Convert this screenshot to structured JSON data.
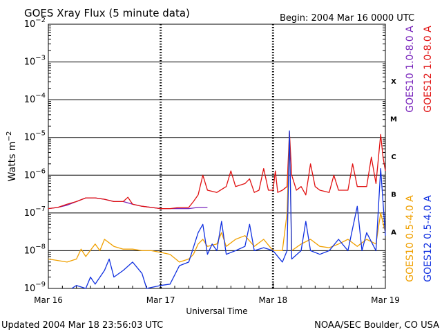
{
  "title": "GOES Xray Flux (5 minute data)",
  "begin_label": "Begin:  2004 Mar 16 0000 UTC",
  "footer_left": "Updated 2004 Mar 18 23:56:03 UTC",
  "footer_right": "NOAA/SEC Boulder, CO USA",
  "colors": {
    "goes10_long": "#7722bb",
    "goes12_long": "#e01010",
    "goes10_short": "#f0a000",
    "goes12_short": "#1030e0",
    "axis": "#000000"
  },
  "chart_data": {
    "type": "line",
    "title": "GOES Xray Flux (5 minute data)",
    "xlabel": "Universal Time",
    "ylabel": "Watts m⁻²",
    "yscale": "log",
    "ylim": [
      1e-09,
      0.01
    ],
    "xlim": [
      0,
      72
    ],
    "x_unit": "hours since 2004 Mar 16 0000 UTC",
    "x_ticks": [
      {
        "x": 0,
        "label": "Mar 16"
      },
      {
        "x": 24,
        "label": "Mar 17"
      },
      {
        "x": 48,
        "label": "Mar 18"
      },
      {
        "x": 72,
        "label": "Mar 19"
      }
    ],
    "y_ticks": [
      {
        "exp": -9,
        "label": "10",
        "sup": "−9"
      },
      {
        "exp": -8,
        "label": "10",
        "sup": "−8"
      },
      {
        "exp": -7,
        "label": "10",
        "sup": "−7"
      },
      {
        "exp": -6,
        "label": "10",
        "sup": "−6"
      },
      {
        "exp": -5,
        "label": "10",
        "sup": "−5"
      },
      {
        "exp": -4,
        "label": "10",
        "sup": "−4"
      },
      {
        "exp": -3,
        "label": "10",
        "sup": "−3"
      },
      {
        "exp": -2,
        "label": "10",
        "sup": "−2"
      }
    ],
    "flare_classes": [
      {
        "label": "A",
        "exp": -7.5
      },
      {
        "label": "B",
        "exp": -6.5
      },
      {
        "label": "C",
        "exp": -5.5
      },
      {
        "label": "M",
        "exp": -4.5
      },
      {
        "label": "X",
        "exp": -3.5
      }
    ],
    "grid": true,
    "legend_position": "right (vertical labels)",
    "series": [
      {
        "name": "GOES10 1.0-8.0 A",
        "color": "#7722bb",
        "points": [
          [
            0,
            1.3e-07
          ],
          [
            2,
            1.4e-07
          ],
          [
            4,
            1.6e-07
          ],
          [
            6,
            2e-07
          ],
          [
            8,
            2.5e-07
          ],
          [
            10,
            2.5e-07
          ],
          [
            12,
            2.3e-07
          ],
          [
            14,
            2e-07
          ],
          [
            16,
            2e-07
          ],
          [
            18,
            1.7e-07
          ],
          [
            20,
            1.5e-07
          ],
          [
            22,
            1.4e-07
          ],
          [
            24,
            1.3e-07
          ],
          [
            26,
            1.3e-07
          ],
          [
            28,
            1.3e-07
          ],
          [
            30,
            1.3e-07
          ],
          [
            32,
            1.4e-07
          ],
          [
            34,
            1.4e-07
          ]
        ]
      },
      {
        "name": "GOES12 1.0-8.0 A",
        "color": "#e01010",
        "points": [
          [
            0,
            1.3e-07
          ],
          [
            2,
            1.4e-07
          ],
          [
            4,
            1.7e-07
          ],
          [
            6,
            2e-07
          ],
          [
            8,
            2.5e-07
          ],
          [
            10,
            2.5e-07
          ],
          [
            12,
            2.3e-07
          ],
          [
            14,
            2e-07
          ],
          [
            16,
            2e-07
          ],
          [
            17,
            2.6e-07
          ],
          [
            18,
            1.7e-07
          ],
          [
            20,
            1.5e-07
          ],
          [
            22,
            1.4e-07
          ],
          [
            24,
            1.3e-07
          ],
          [
            26,
            1.3e-07
          ],
          [
            28,
            1.4e-07
          ],
          [
            30,
            1.4e-07
          ],
          [
            31,
            2e-07
          ],
          [
            32,
            3e-07
          ],
          [
            33,
            1e-06
          ],
          [
            34,
            4e-07
          ],
          [
            36,
            3.5e-07
          ],
          [
            38,
            5e-07
          ],
          [
            39,
            1.3e-06
          ],
          [
            40,
            5e-07
          ],
          [
            42,
            6e-07
          ],
          [
            43,
            8e-07
          ],
          [
            44,
            3.5e-07
          ],
          [
            45,
            4e-07
          ],
          [
            46,
            1.5e-06
          ],
          [
            47,
            4e-07
          ],
          [
            48,
            4e-07
          ],
          [
            48.5,
            1.3e-06
          ],
          [
            49,
            3.5e-07
          ],
          [
            50,
            4e-07
          ],
          [
            51,
            5e-07
          ],
          [
            51.5,
            1.4e-05
          ],
          [
            52,
            1e-06
          ],
          [
            53,
            4e-07
          ],
          [
            54,
            5e-07
          ],
          [
            55,
            3e-07
          ],
          [
            56,
            2e-06
          ],
          [
            57,
            5e-07
          ],
          [
            58,
            4e-07
          ],
          [
            60,
            3.5e-07
          ],
          [
            61,
            1e-06
          ],
          [
            62,
            4e-07
          ],
          [
            64,
            4e-07
          ],
          [
            65,
            2e-06
          ],
          [
            66,
            5e-07
          ],
          [
            68,
            5e-07
          ],
          [
            69,
            3e-06
          ],
          [
            70,
            6e-07
          ],
          [
            71,
            1.2e-05
          ],
          [
            71.5,
            3e-06
          ],
          [
            72,
            1.3e-06
          ]
        ]
      },
      {
        "name": "GOES10 0.5-4.0 A",
        "color": "#f0a000",
        "points": [
          [
            0,
            6e-09
          ],
          [
            2,
            5.5e-09
          ],
          [
            4,
            5e-09
          ],
          [
            6,
            6e-09
          ],
          [
            7,
            1.1e-08
          ],
          [
            8,
            7e-09
          ],
          [
            10,
            1.5e-08
          ],
          [
            11,
            1e-08
          ],
          [
            12,
            2e-08
          ],
          [
            14,
            1.3e-08
          ],
          [
            16,
            1.1e-08
          ],
          [
            18,
            1.1e-08
          ],
          [
            20,
            1e-08
          ],
          [
            22,
            1e-08
          ],
          [
            24,
            9e-09
          ],
          [
            26,
            8e-09
          ],
          [
            28,
            5e-09
          ],
          [
            30,
            6e-09
          ],
          [
            31,
            8e-09
          ],
          [
            32,
            1.5e-08
          ],
          [
            33,
            2e-08
          ],
          [
            34,
            1.3e-08
          ],
          [
            36,
            1.5e-08
          ],
          [
            37,
            3e-08
          ],
          [
            38,
            1.3e-08
          ],
          [
            40,
            2e-08
          ],
          [
            42,
            2.5e-08
          ],
          [
            44,
            1.3e-08
          ],
          [
            46,
            2e-08
          ],
          [
            48,
            1e-08
          ],
          [
            50,
            1e-08
          ],
          [
            51,
            1e-07
          ],
          [
            51.5,
            1.3e-05
          ],
          [
            52,
            1e-08
          ],
          [
            54,
            1.5e-08
          ],
          [
            56,
            2e-08
          ],
          [
            58,
            1.3e-08
          ],
          [
            60,
            1.2e-08
          ],
          [
            62,
            1.5e-08
          ],
          [
            64,
            2e-08
          ],
          [
            66,
            1.3e-08
          ],
          [
            68,
            2e-08
          ],
          [
            70,
            1.5e-08
          ],
          [
            71,
            1e-07
          ],
          [
            72,
            3e-08
          ]
        ]
      },
      {
        "name": "GOES12 0.5-4.0 A",
        "color": "#1030e0",
        "points": [
          [
            5,
            1e-09
          ],
          [
            6,
            1.2e-09
          ],
          [
            8,
            1e-09
          ],
          [
            9,
            2e-09
          ],
          [
            10,
            1.3e-09
          ],
          [
            12,
            3e-09
          ],
          [
            13,
            6e-09
          ],
          [
            14,
            2e-09
          ],
          [
            16,
            3e-09
          ],
          [
            18,
            5e-09
          ],
          [
            20,
            2.5e-09
          ],
          [
            21,
            1e-09
          ],
          [
            24,
            1.2e-09
          ],
          [
            26,
            1.3e-09
          ],
          [
            28,
            4e-09
          ],
          [
            30,
            5e-09
          ],
          [
            32,
            3e-08
          ],
          [
            33,
            5e-08
          ],
          [
            34,
            8e-09
          ],
          [
            35,
            1.5e-08
          ],
          [
            36,
            1e-08
          ],
          [
            37,
            6e-08
          ],
          [
            38,
            8e-09
          ],
          [
            40,
            1e-08
          ],
          [
            42,
            1.3e-08
          ],
          [
            43,
            5e-08
          ],
          [
            44,
            1e-08
          ],
          [
            46,
            1.2e-08
          ],
          [
            48,
            1e-08
          ],
          [
            50,
            5e-09
          ],
          [
            51,
            1e-08
          ],
          [
            51.5,
            1.5e-05
          ],
          [
            52,
            6e-09
          ],
          [
            54,
            1e-08
          ],
          [
            55,
            6e-08
          ],
          [
            56,
            1e-08
          ],
          [
            58,
            8e-09
          ],
          [
            60,
            1e-08
          ],
          [
            62,
            2e-08
          ],
          [
            64,
            1e-08
          ],
          [
            66,
            1.5e-07
          ],
          [
            67,
            1e-08
          ],
          [
            68,
            3e-08
          ],
          [
            70,
            1e-08
          ],
          [
            71,
            1.5e-06
          ],
          [
            72,
            2.5e-08
          ]
        ]
      }
    ]
  }
}
